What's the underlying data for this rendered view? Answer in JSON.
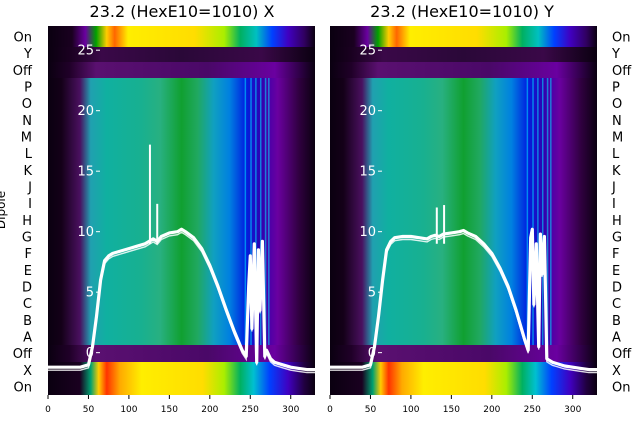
{
  "chart_data": [
    {
      "type": "heatmap",
      "title": "23.2 (HexE10=1010) X",
      "ylabel": "Dipole",
      "row_labels_top_to_bottom": [
        "On",
        "Y",
        "Off",
        "P",
        "O",
        "N",
        "M",
        "L",
        "K",
        "J",
        "I",
        "H",
        "G",
        "F",
        "E",
        "D",
        "C",
        "B",
        "A",
        "Off",
        "X",
        "On"
      ],
      "x_ticks": [
        "0",
        "50",
        "100",
        "150",
        "200",
        "250",
        "300"
      ],
      "xlim": [
        0,
        330
      ],
      "overlay_y_ticks": [
        "25",
        "20",
        "15",
        "10",
        "5",
        "0"
      ],
      "overlay_ylim": [
        -3.5,
        27
      ],
      "colormap": "nipy_spectral",
      "overlay_line": {
        "x": [
          0,
          20,
          40,
          50,
          55,
          60,
          65,
          70,
          75,
          80,
          90,
          100,
          110,
          120,
          125,
          130,
          135,
          140,
          150,
          160,
          165,
          170,
          180,
          190,
          200,
          210,
          220,
          230,
          240,
          245,
          248,
          250,
          252,
          255,
          258,
          260,
          262,
          265,
          268,
          270,
          275,
          280,
          290,
          300,
          310,
          320,
          330
        ],
        "y": [
          -1.2,
          -1.2,
          -1.2,
          -1.0,
          0.5,
          3,
          6,
          7.6,
          8.0,
          8.2,
          8.4,
          8.6,
          8.8,
          9.0,
          9.2,
          9.4,
          9.2,
          9.6,
          9.9,
          10.0,
          10.2,
          10.0,
          9.5,
          8.6,
          7.2,
          5.5,
          3.6,
          1.8,
          0.2,
          -0.3,
          5.5,
          8.0,
          2.0,
          9.0,
          -0.8,
          8.5,
          3.5,
          9.2,
          -0.3,
          0.2,
          -0.5,
          -0.8,
          -1.0,
          -1.2,
          -1.3,
          -1.4,
          -1.4
        ]
      },
      "spikes": [
        {
          "x": 126,
          "y": 17.2
        },
        {
          "x": 135,
          "y": 12.3
        }
      ]
    },
    {
      "type": "heatmap",
      "title": "23.2 (HexE10=1010) Y",
      "ylabel": "",
      "row_labels_top_to_bottom": [
        "On",
        "Y",
        "Off",
        "P",
        "O",
        "N",
        "M",
        "L",
        "K",
        "J",
        "I",
        "H",
        "G",
        "F",
        "E",
        "D",
        "C",
        "B",
        "A",
        "Off",
        "X",
        "On"
      ],
      "x_ticks": [
        "0",
        "50",
        "100",
        "150",
        "200",
        "250",
        "300"
      ],
      "xlim": [
        0,
        330
      ],
      "overlay_y_ticks": [
        "25",
        "20",
        "15",
        "10",
        "5",
        "0"
      ],
      "overlay_ylim": [
        -3.5,
        27
      ],
      "colormap": "nipy_spectral",
      "overlay_line": {
        "x": [
          0,
          20,
          40,
          50,
          55,
          60,
          65,
          70,
          75,
          80,
          90,
          100,
          110,
          120,
          125,
          130,
          135,
          140,
          150,
          160,
          165,
          170,
          180,
          190,
          200,
          210,
          220,
          230,
          240,
          245,
          248,
          250,
          252,
          255,
          258,
          260,
          262,
          265,
          268,
          270,
          275,
          280,
          290,
          300,
          310,
          320,
          330
        ],
        "y": [
          -1.2,
          -1.2,
          -1.2,
          -1.0,
          0.5,
          3,
          6,
          8.5,
          9.2,
          9.5,
          9.6,
          9.6,
          9.5,
          9.4,
          9.6,
          9.7,
          9.6,
          9.8,
          9.9,
          10.0,
          10.1,
          9.9,
          9.6,
          9.0,
          8.2,
          7.0,
          5.5,
          3.5,
          1.2,
          0.2,
          9.5,
          10.2,
          4.0,
          9.0,
          0.5,
          9.8,
          6.5,
          9.6,
          -0.5,
          -0.6,
          -0.8,
          -0.9,
          -1.1,
          -1.2,
          -1.3,
          -1.4,
          -1.4
        ]
      },
      "spikes": [
        {
          "x": 132,
          "y": 12.0
        },
        {
          "x": 141,
          "y": 12.2
        }
      ]
    }
  ]
}
